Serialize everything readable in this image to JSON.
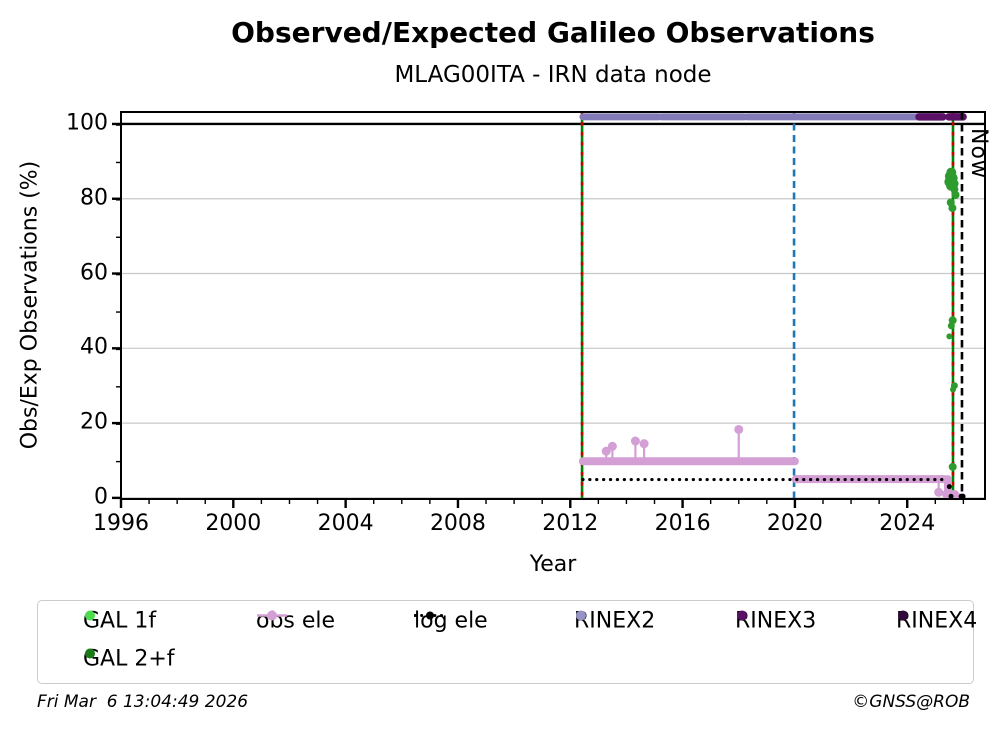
{
  "header": {
    "title": "Observed/Expected Galileo Observations",
    "subtitle": "MLAG00ITA - IRN data node"
  },
  "now_label": "Now",
  "footer": {
    "timestamp": "Fri Mar  6 13:04:49 2026",
    "copyright": "©GNSS@ROB"
  },
  "chart_data": {
    "type": "line",
    "title": "Observed/Expected Galileo Observations",
    "subtitle": "MLAG00ITA - IRN data node",
    "xlabel": "Year",
    "ylabel": "Obs/Exp Observations (%)",
    "xlim": [
      1996,
      2026.77
    ],
    "ylim": [
      -0.3,
      103.2
    ],
    "xticks": [
      1996,
      2000,
      2004,
      2008,
      2012,
      2016,
      2020,
      2024
    ],
    "yticks": [
      0,
      20,
      40,
      60,
      80,
      100
    ],
    "x_minor_step": 1,
    "y_minor_step": 10,
    "grid": "horizontal",
    "grid_color": "#c8c8c8",
    "reference_line_y": 100,
    "legend_position": "below",
    "series": [
      {
        "name": "GAL 1f",
        "color": "#4cdb4c",
        "style": "points",
        "points": []
      },
      {
        "name": "GAL 2+f",
        "color": "#2e9b2e",
        "style": "points",
        "points": [
          [
            2025.5,
            84.5,
            5
          ],
          [
            2025.52,
            86,
            5
          ],
          [
            2025.57,
            87,
            5
          ],
          [
            2025.62,
            85.5,
            5
          ],
          [
            2025.56,
            83.5,
            5
          ],
          [
            2025.65,
            84,
            5
          ],
          [
            2025.68,
            82.5,
            4
          ],
          [
            2025.72,
            81,
            4
          ],
          [
            2025.55,
            79,
            4
          ],
          [
            2025.61,
            77.5,
            4
          ],
          [
            2025.62,
            47.5,
            4
          ],
          [
            2025.57,
            46,
            3.5
          ],
          [
            2025.5,
            43.2,
            3
          ],
          [
            2025.68,
            30,
            3.5
          ],
          [
            2025.63,
            29,
            3
          ],
          [
            2025.62,
            8.3,
            4
          ]
        ]
      },
      {
        "name": "obs ele",
        "color": "#d49fd4",
        "style": "line",
        "width": 8,
        "segments": [
          [
            2012.45,
            2020.0,
            9.8
          ],
          [
            2020.03,
            2025.32,
            5
          ]
        ],
        "spikes": [
          [
            2013.28,
            9.8,
            12.5
          ],
          [
            2013.5,
            9.8,
            13.8
          ],
          [
            2014.32,
            9.8,
            15.2
          ],
          [
            2014.63,
            9.8,
            14.5
          ],
          [
            2018.0,
            9.8,
            18.3
          ],
          [
            2025.12,
            5,
            1.5
          ]
        ],
        "drops": [
          [
            2025.45,
            5,
            1
          ]
        ],
        "extra_segments": [
          [
            2025.38,
            2025.7,
            1
          ]
        ],
        "points": [
          [
            2025.82,
            0.5,
            3
          ],
          [
            2025.96,
            0.5,
            3
          ]
        ]
      },
      {
        "name": "log ele",
        "color": "#000000",
        "style": "dotted",
        "width": 3.2,
        "segments": [
          [
            2012.45,
            2025.45,
            4.9
          ]
        ],
        "points": [
          [
            2025.5,
            3,
            2.5
          ],
          [
            2025.56,
            0.4,
            2.5
          ],
          [
            2025.92,
            0.4,
            2.5
          ],
          [
            2025.99,
            0.4,
            2.5
          ]
        ]
      },
      {
        "name": "RINEX2",
        "color": "#837ab8",
        "style": "line",
        "width": 7,
        "segments": [
          [
            2012.45,
            2015.15,
            101.9
          ],
          [
            2015.25,
            2018.2,
            101.9
          ],
          [
            2018.3,
            2024.4,
            101.9
          ]
        ]
      },
      {
        "name": "RINEX3",
        "color": "#5a1066",
        "style": "line",
        "width": 7.5,
        "segments": [
          [
            2024.42,
            2025.27,
            101.9
          ],
          [
            2025.48,
            2025.99,
            101.9
          ]
        ]
      },
      {
        "name": "RINEX4",
        "color": "#30083c",
        "style": "points",
        "points": []
      }
    ],
    "event_lines": [
      {
        "x": 2012.42,
        "style": "green-red-dashed",
        "colors": [
          "#007f00",
          "#cc0000"
        ]
      },
      {
        "x": 2019.97,
        "style": "dashed",
        "color": "#1f77b4"
      },
      {
        "x": 2025.63,
        "style": "green-red-dashed",
        "colors": [
          "#007f00",
          "#cc0000"
        ]
      },
      {
        "x": 2025.95,
        "style": "dashed",
        "color": "#000000",
        "label": "Now"
      }
    ],
    "legend": [
      {
        "label": "GAL 1f",
        "marker": "dot",
        "color": "#4cdb4c"
      },
      {
        "label": "GAL 2+f",
        "marker": "dot",
        "color": "#1a7a1a"
      },
      {
        "label": "obs ele",
        "marker": "line-dot",
        "color": "#d49fd4"
      },
      {
        "label": "log ele",
        "marker": "dotted-dot",
        "color": "#000000"
      },
      {
        "label": "RINEX2",
        "marker": "dot",
        "color": "#9693c8"
      },
      {
        "label": "RINEX3",
        "marker": "dot",
        "color": "#5a1066"
      },
      {
        "label": "RINEX4",
        "marker": "dot",
        "color": "#30083c"
      }
    ]
  }
}
